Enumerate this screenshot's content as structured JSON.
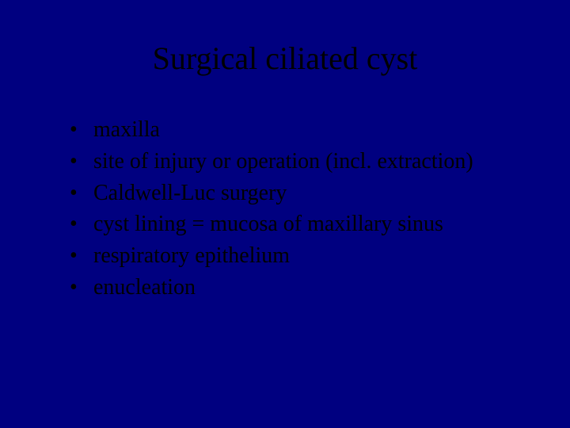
{
  "slide": {
    "background_color": "#000080",
    "text_color": "#000000",
    "font_family": "Times New Roman",
    "title": {
      "text": "Surgical ciliated cyst",
      "fontsize": 40,
      "align": "center"
    },
    "bullets": {
      "fontsize": 28,
      "marker": "•",
      "items": [
        "maxilla",
        "site of injury or operation (incl. extraction)",
        "Caldwell-Luc surgery",
        "cyst lining = mucosa of maxillary sinus",
        "respiratory epithelium",
        "enucleation"
      ]
    }
  }
}
